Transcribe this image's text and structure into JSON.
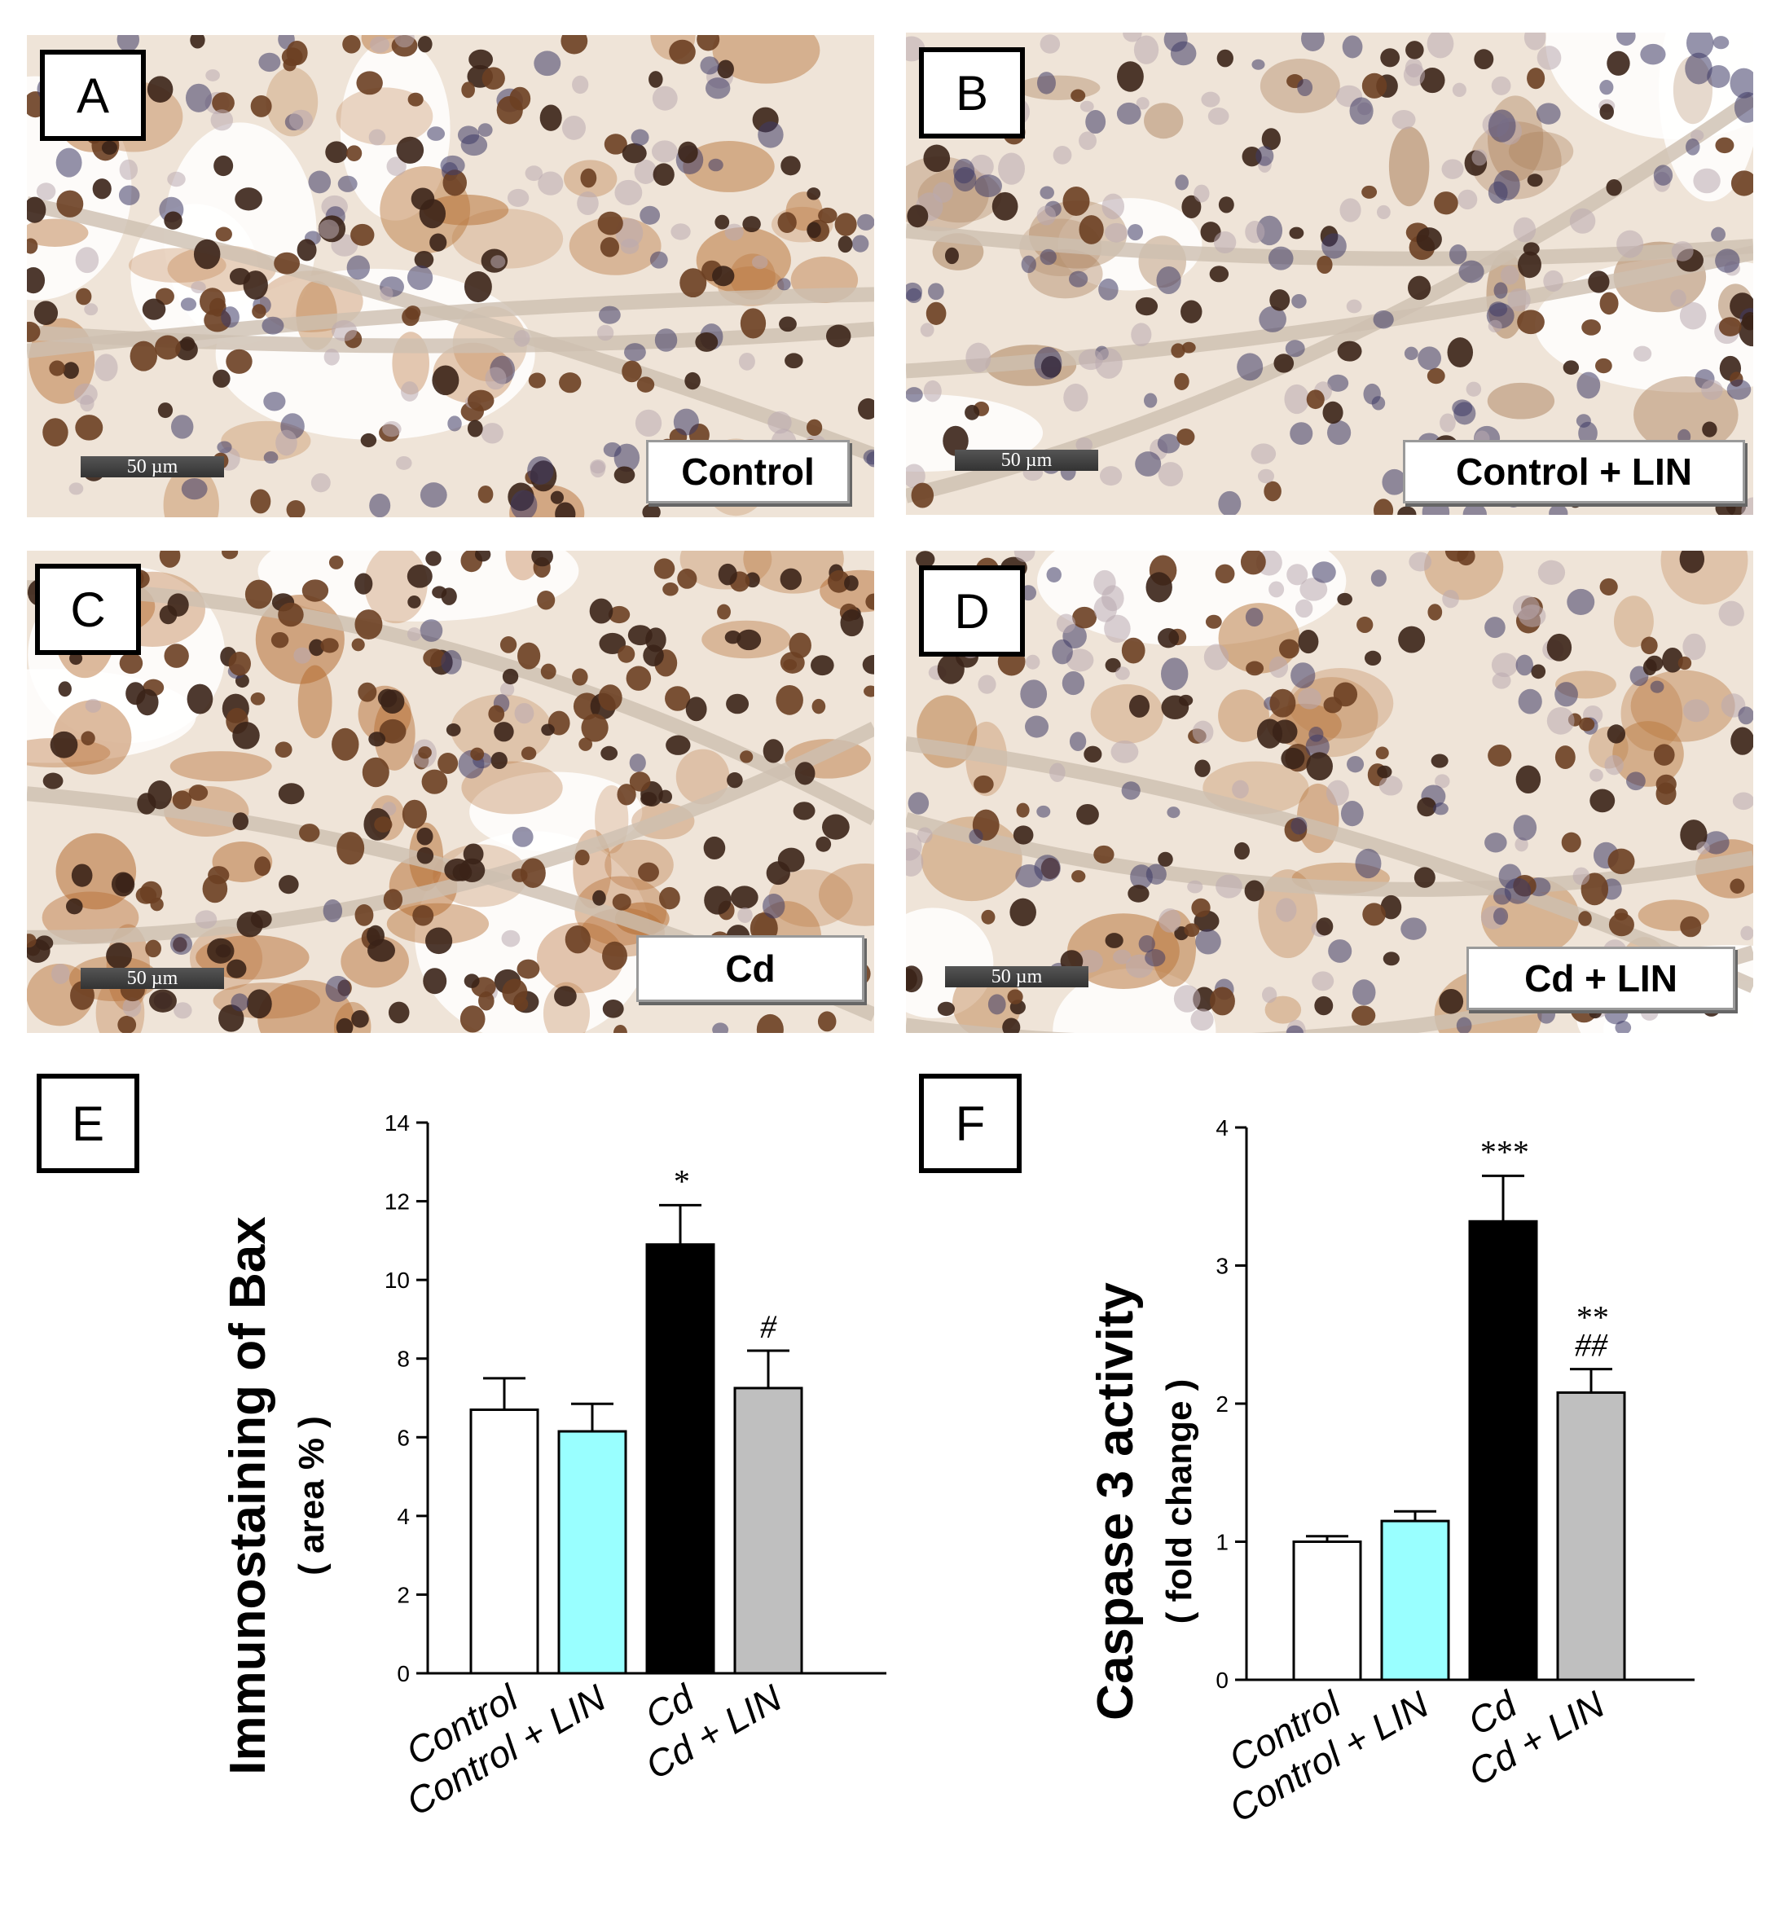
{
  "micrographs": [
    {
      "letter": "A",
      "group": "Control",
      "scale": "50 µm",
      "stain": "#b8743a",
      "density": 0.55
    },
    {
      "letter": "B",
      "group": "Control + LIN",
      "scale": "50 µm",
      "stain": "#a87c55",
      "density": 0.35
    },
    {
      "letter": "C",
      "group": "Cd",
      "scale": "50 µm",
      "stain": "#b46a2e",
      "density": 0.85
    },
    {
      "letter": "D",
      "group": "Cd + LIN",
      "scale": "50 µm",
      "stain": "#b9783f",
      "density": 0.5
    }
  ],
  "colors": {
    "bar_control": "#ffffff",
    "bar_control_lin": "#99ffff",
    "bar_cd": "#000000",
    "bar_cd_lin": "#bfbfbf",
    "axis": "#000000",
    "nucleus_dark": "#3b2418",
    "nucleus_blue": "#3e3a66",
    "tissue_bg": "#efe4d8"
  },
  "chart_data": [
    {
      "type": "bar",
      "panel": "E",
      "ylabel": "Immunostaining of Bax",
      "ylabel_sub": "( area % )",
      "categories": [
        "Control",
        "Control + LIN",
        "Cd",
        "Cd + LIN"
      ],
      "values": [
        6.7,
        6.15,
        10.9,
        7.25
      ],
      "errors": [
        0.8,
        0.7,
        1.0,
        0.95
      ],
      "annotations": [
        "",
        "",
        "*",
        "#"
      ],
      "ylim": [
        0,
        14
      ],
      "yticks": [
        "0",
        "2",
        "4",
        "6",
        "8",
        "10",
        "12",
        "14"
      ]
    },
    {
      "type": "bar",
      "panel": "F",
      "ylabel": "Caspase 3 activity",
      "ylabel_sub": "( fold change )",
      "categories": [
        "Control",
        "Control + LIN",
        "Cd",
        "Cd + LIN"
      ],
      "values": [
        1.0,
        1.15,
        3.32,
        2.08
      ],
      "errors": [
        0.04,
        0.07,
        0.33,
        0.17
      ],
      "annotations": [
        "",
        "",
        "***",
        "**\n##"
      ],
      "ylim": [
        0,
        4
      ],
      "yticks": [
        "0",
        "1",
        "2",
        "3",
        "4"
      ]
    }
  ]
}
